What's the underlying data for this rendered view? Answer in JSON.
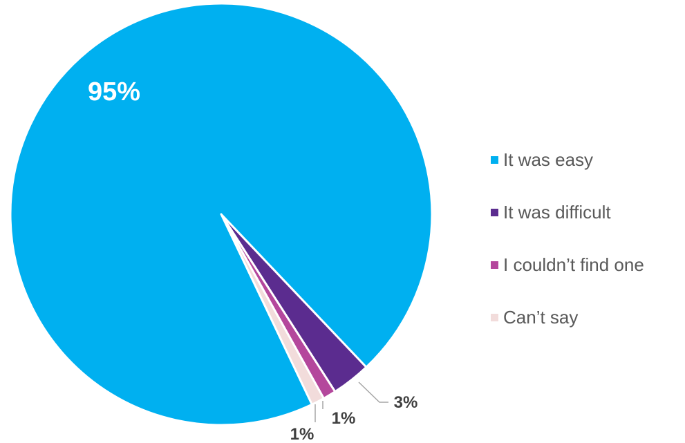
{
  "chart_data": {
    "type": "pie",
    "title": "",
    "slices": [
      {
        "label": "It was easy",
        "value": 95,
        "data_label": "95%",
        "color": "#00b0f0"
      },
      {
        "label": "It was difficult",
        "value": 3,
        "data_label": "3%",
        "color": "#5b2c8f"
      },
      {
        "label": "I couldn’t find one",
        "value": 1,
        "data_label": "1%",
        "color": "#b4479c"
      },
      {
        "label": "Can’t say",
        "value": 1,
        "data_label": "1%",
        "color": "#f2dcdb"
      }
    ],
    "legend_position": "right",
    "label_color_inside": "#ffffff",
    "label_color_outside": "#404040"
  }
}
